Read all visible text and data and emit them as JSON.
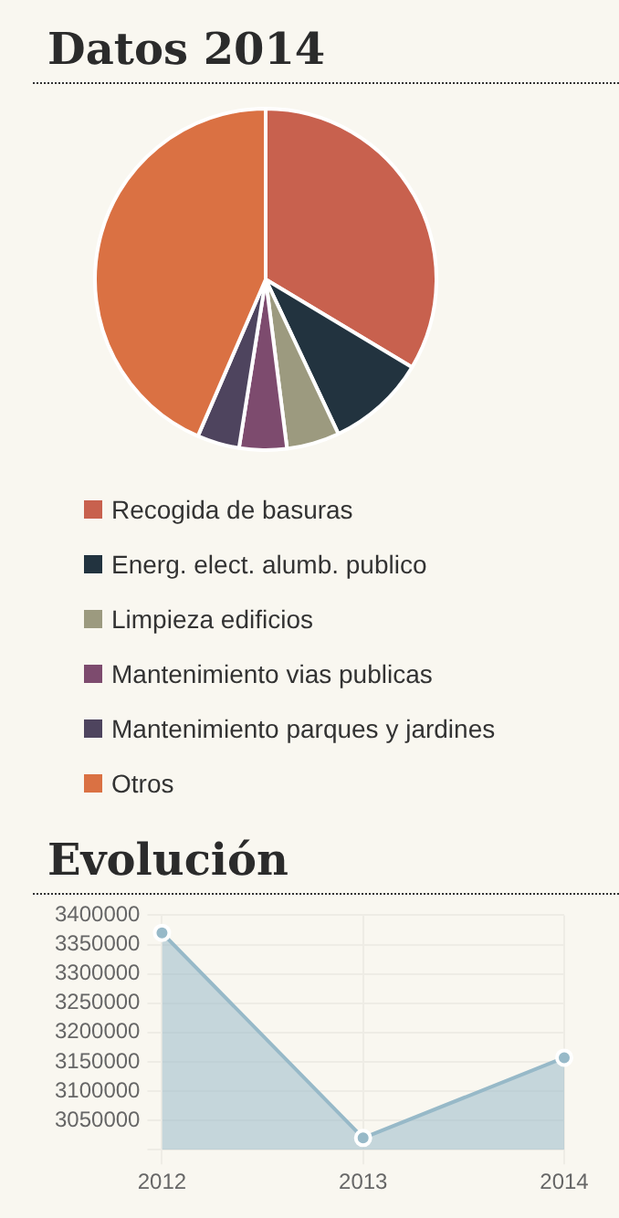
{
  "chart_data": [
    {
      "type": "pie",
      "title": "Datos 2014",
      "categories": [
        "Recogida de basuras",
        "Energ. elect. alumb. publico",
        "Limpieza edificios",
        "Mantenimiento vias publicas",
        "Mantenimiento parques y jardines",
        "Otros"
      ],
      "values": [
        33.6,
        9.4,
        5.0,
        4.5,
        4.0,
        43.5
      ],
      "colors": [
        "#c8614e",
        "#22333f",
        "#9c9a7f",
        "#7d4b6e",
        "#4e445e",
        "#da7143"
      ],
      "legend": "bottom"
    },
    {
      "type": "area",
      "title": "Evolución",
      "categories": [
        "2012",
        "2013",
        "2014"
      ],
      "series": [
        {
          "color": "#97b9c8",
          "values": [
            3370000,
            3020000,
            3157000
          ]
        }
      ],
      "ylim": [
        3000000,
        3400000
      ],
      "yticks": [
        {
          "value": 3000000,
          "label": null
        },
        3050000,
        3100000,
        3150000,
        3200000,
        3250000,
        3300000,
        3350000,
        3400000
      ],
      "grid": true,
      "marker": "circle"
    }
  ]
}
